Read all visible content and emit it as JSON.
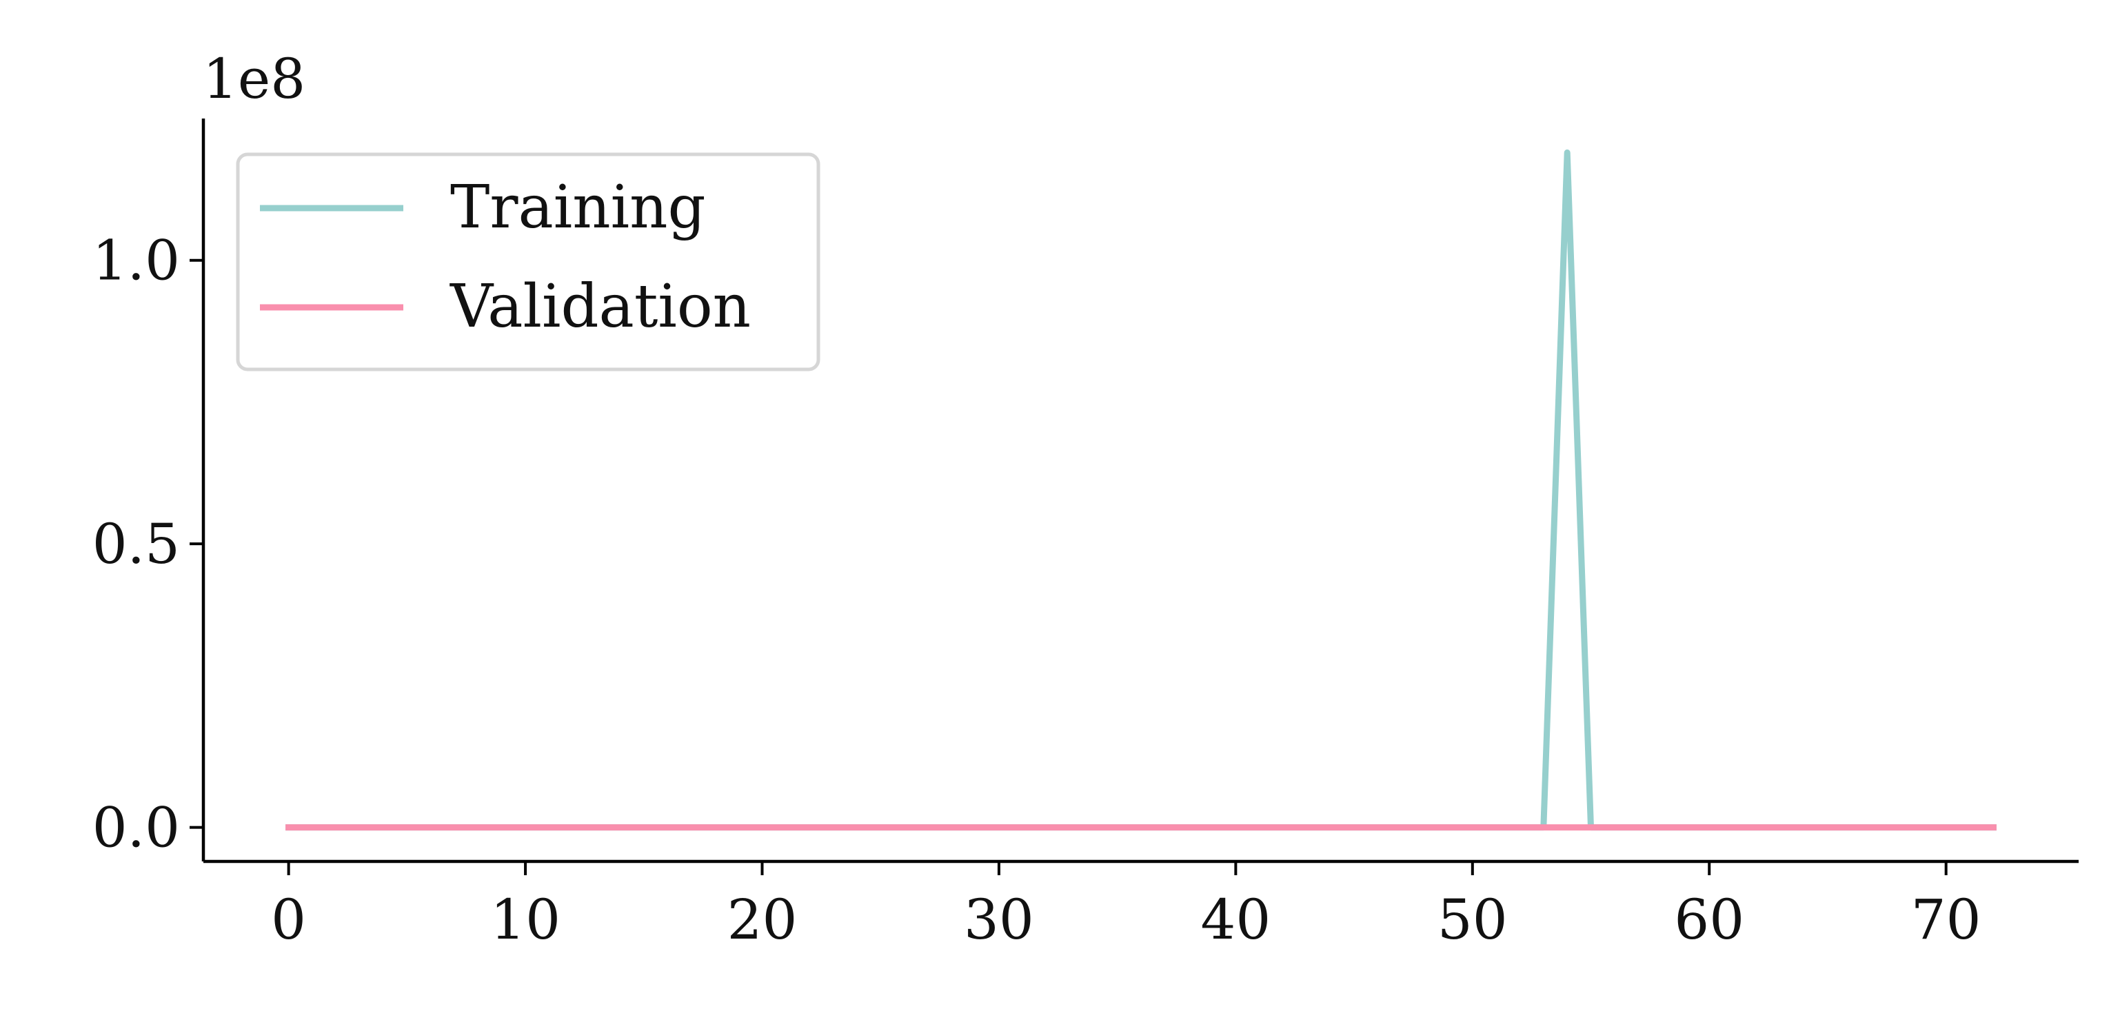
{
  "chart_data": {
    "type": "line",
    "title": "",
    "xlabel": "",
    "ylabel": "",
    "y_offset_label": "1e8",
    "xlim": [
      -3.6,
      75.6
    ],
    "ylim": [
      -0.06,
      1.25
    ],
    "xticks": [
      0,
      10,
      20,
      30,
      40,
      50,
      60,
      70
    ],
    "xtick_labels": [
      "0",
      "10",
      "20",
      "30",
      "40",
      "50",
      "60",
      "70"
    ],
    "yticks": [
      0.0,
      0.5,
      1.0
    ],
    "ytick_labels": [
      "0.0",
      "0.5",
      "1.0"
    ],
    "grid": false,
    "legend_position": "top-left",
    "x": [
      0,
      1,
      2,
      3,
      4,
      5,
      6,
      7,
      8,
      9,
      10,
      11,
      12,
      13,
      14,
      15,
      16,
      17,
      18,
      19,
      20,
      21,
      22,
      23,
      24,
      25,
      26,
      27,
      28,
      29,
      30,
      31,
      32,
      33,
      34,
      35,
      36,
      37,
      38,
      39,
      40,
      41,
      42,
      43,
      44,
      45,
      46,
      47,
      48,
      49,
      50,
      51,
      52,
      53,
      54,
      55,
      56,
      57,
      58,
      59,
      60,
      61,
      62,
      63,
      64,
      65,
      66,
      67,
      68,
      69,
      70,
      71,
      72
    ],
    "series": [
      {
        "name": "Training",
        "color": "#96cfcd",
        "values": [
          0,
          0,
          0,
          0,
          0,
          0,
          0,
          0,
          0,
          0,
          0,
          0,
          0,
          0,
          0,
          0,
          0,
          0,
          0,
          0,
          0,
          0,
          0,
          0,
          0,
          0,
          0,
          0,
          0,
          0,
          0,
          0,
          0,
          0,
          0,
          0,
          0,
          0,
          0,
          0,
          0,
          0,
          0,
          0,
          0,
          0,
          0,
          0,
          0,
          0,
          0,
          0,
          0,
          0,
          1.19,
          0,
          0,
          0,
          0,
          0,
          0,
          0,
          0,
          0,
          0,
          0,
          0,
          0,
          0,
          0,
          0,
          0,
          0
        ]
      },
      {
        "name": "Validation",
        "color": "#f98fad",
        "values": [
          0,
          0,
          0,
          0,
          0,
          0,
          0,
          0,
          0,
          0,
          0,
          0,
          0,
          0,
          0,
          0,
          0,
          0,
          0,
          0,
          0,
          0,
          0,
          0,
          0,
          0,
          0,
          0,
          0,
          0,
          0,
          0,
          0,
          0,
          0,
          0,
          0,
          0,
          0,
          0,
          0,
          0,
          0,
          0,
          0,
          0,
          0,
          0,
          0,
          0,
          0,
          0,
          0,
          0,
          0,
          0,
          0,
          0,
          0,
          0,
          0,
          0,
          0,
          0,
          0,
          0,
          0,
          0,
          0,
          0,
          0,
          0,
          0
        ]
      }
    ]
  }
}
